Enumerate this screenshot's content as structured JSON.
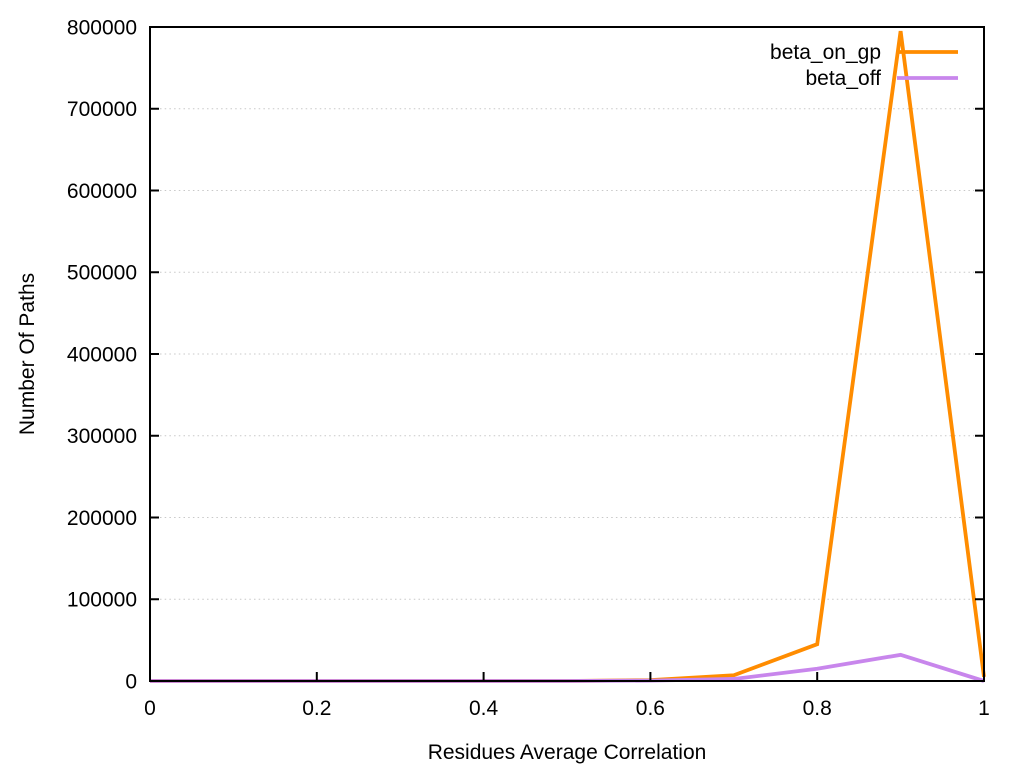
{
  "chart_data": {
    "type": "line",
    "title": "",
    "xlabel": "Residues Average Correlation",
    "ylabel": "Number Of Paths",
    "xlim": [
      0,
      1
    ],
    "ylim": [
      0,
      800000
    ],
    "xticks": [
      0,
      0.2,
      0.4,
      0.6,
      0.8,
      1
    ],
    "yticks": [
      0,
      100000,
      200000,
      300000,
      400000,
      500000,
      600000,
      700000,
      800000
    ],
    "grid": "horizontal dotted gridlines at y ticks",
    "legend_position": "top-right inside plot area",
    "background_color": "#ffffff",
    "border_color": "#000000",
    "grid_color": "#c8c8c8",
    "x": [
      0,
      0.1,
      0.2,
      0.3,
      0.4,
      0.5,
      0.6,
      0.7,
      0.8,
      0.9,
      1
    ],
    "series": [
      {
        "name": "beta_on_gp",
        "color": "#ff8c00",
        "values": [
          0,
          0,
          0,
          0,
          0,
          0,
          1000,
          7000,
          45000,
          795000,
          5000
        ]
      },
      {
        "name": "beta_off",
        "color": "#c886ec",
        "values": [
          0,
          0,
          0,
          0,
          0,
          0,
          500,
          2500,
          15000,
          32000,
          0
        ]
      }
    ]
  }
}
